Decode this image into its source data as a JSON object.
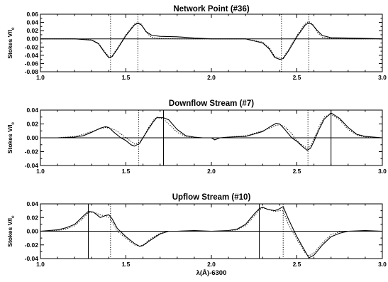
{
  "chart_data": [
    {
      "type": "line",
      "title": "Network Point (#36)",
      "ylabel": "Stokes V/I",
      "ylabel_sub": "c",
      "xlabel": "",
      "xlim": [
        1.0,
        3.0
      ],
      "ylim": [
        -0.08,
        0.06
      ],
      "xticks": [
        "1.0",
        "1.5",
        "2.0",
        "2.5",
        "3.0"
      ],
      "yticks": [
        "-0.08",
        "-0.06",
        "-0.04",
        "-0.02",
        "0.00",
        "0.02",
        "0.04",
        "0.06"
      ],
      "vlines": [
        {
          "x": 1.41,
          "style": "dotted"
        },
        {
          "x": 1.57,
          "style": "dotted"
        },
        {
          "x": 2.41,
          "style": "dotted"
        },
        {
          "x": 2.57,
          "style": "dotted"
        }
      ],
      "series": [
        {
          "style": "solid",
          "x": [
            1.0,
            1.2,
            1.3,
            1.34,
            1.37,
            1.4,
            1.42,
            1.45,
            1.5,
            1.55,
            1.57,
            1.59,
            1.62,
            1.65,
            1.7,
            1.8,
            1.9,
            2.0,
            2.2,
            2.3,
            2.34,
            2.37,
            2.4,
            2.42,
            2.45,
            2.5,
            2.55,
            2.57,
            2.59,
            2.62,
            2.65,
            2.7,
            2.8,
            2.9,
            3.0
          ],
          "y": [
            0.0,
            0.0,
            -0.003,
            -0.012,
            -0.03,
            -0.046,
            -0.043,
            -0.025,
            0.008,
            0.034,
            0.038,
            0.034,
            0.017,
            0.009,
            0.006,
            0.005,
            0.002,
            0.0,
            0.0,
            -0.01,
            -0.025,
            -0.045,
            -0.05,
            -0.048,
            -0.03,
            0.005,
            0.034,
            0.039,
            0.035,
            0.02,
            0.008,
            0.003,
            0.002,
            0.001,
            0.0
          ]
        },
        {
          "style": "dotted",
          "x": [
            1.0,
            1.2,
            1.3,
            1.34,
            1.37,
            1.4,
            1.42,
            1.45,
            1.5,
            1.55,
            1.57,
            1.59,
            1.62,
            1.65,
            1.7,
            1.8,
            1.9,
            2.0,
            2.2,
            2.3,
            2.34,
            2.37,
            2.4,
            2.42,
            2.45,
            2.5,
            2.55,
            2.57,
            2.59,
            2.62,
            2.65,
            2.7,
            2.8,
            2.9,
            3.0
          ],
          "y": [
            0.0,
            0.0,
            -0.002,
            -0.01,
            -0.028,
            -0.043,
            -0.041,
            -0.023,
            0.01,
            0.036,
            0.04,
            0.036,
            0.015,
            0.004,
            0.001,
            0.0,
            0.0,
            0.0,
            0.0,
            -0.008,
            -0.022,
            -0.042,
            -0.047,
            -0.046,
            -0.027,
            0.008,
            0.038,
            0.042,
            0.037,
            0.016,
            0.004,
            0.001,
            0.0,
            0.0,
            0.0
          ]
        }
      ]
    },
    {
      "type": "line",
      "title": "Downflow Stream (#7)",
      "ylabel": "Stokes V/I",
      "ylabel_sub": "c",
      "xlabel": "",
      "xlim": [
        1.0,
        3.0
      ],
      "ylim": [
        -0.04,
        0.04
      ],
      "xticks": [
        "1.0",
        "1.5",
        "2.0",
        "2.5",
        "3.0"
      ],
      "yticks": [
        "-0.04",
        "-0.02",
        "0.00",
        "0.02",
        "0.04"
      ],
      "vlines": [
        {
          "x": 1.575,
          "style": "dotted"
        },
        {
          "x": 1.72,
          "style": "solid"
        },
        {
          "x": 2.565,
          "style": "dotted"
        },
        {
          "x": 2.7,
          "style": "solid"
        }
      ],
      "series": [
        {
          "style": "solid",
          "x": [
            1.0,
            1.1,
            1.2,
            1.25,
            1.3,
            1.35,
            1.38,
            1.4,
            1.43,
            1.47,
            1.5,
            1.53,
            1.55,
            1.58,
            1.6,
            1.63,
            1.66,
            1.68,
            1.72,
            1.75,
            1.8,
            1.85,
            1.9,
            1.95,
            2.0,
            2.02,
            2.05,
            2.1,
            2.2,
            2.3,
            2.35,
            2.38,
            2.4,
            2.43,
            2.47,
            2.5,
            2.53,
            2.56,
            2.58,
            2.6,
            2.63,
            2.66,
            2.7,
            2.75,
            2.8,
            2.85,
            2.9,
            2.95,
            3.0
          ],
          "y": [
            0.0,
            0.0,
            0.001,
            0.003,
            0.008,
            0.014,
            0.016,
            0.015,
            0.008,
            0.0,
            -0.004,
            -0.01,
            -0.012,
            -0.008,
            0.0,
            0.012,
            0.023,
            0.029,
            0.029,
            0.026,
            0.012,
            0.003,
            0.001,
            0.0,
            0.0,
            -0.003,
            0.0,
            0.001,
            0.002,
            0.009,
            0.017,
            0.021,
            0.02,
            0.012,
            0.0,
            -0.005,
            -0.012,
            -0.018,
            -0.015,
            -0.005,
            0.012,
            0.027,
            0.036,
            0.028,
            0.015,
            0.005,
            0.002,
            0.001,
            0.0
          ]
        },
        {
          "style": "dotted",
          "x": [
            1.0,
            1.1,
            1.2,
            1.25,
            1.3,
            1.35,
            1.38,
            1.4,
            1.43,
            1.47,
            1.5,
            1.53,
            1.55,
            1.58,
            1.6,
            1.63,
            1.66,
            1.68,
            1.72,
            1.75,
            1.8,
            1.85,
            1.9,
            1.95,
            2.0,
            2.02,
            2.05,
            2.1,
            2.2,
            2.3,
            2.35,
            2.38,
            2.4,
            2.43,
            2.47,
            2.5,
            2.53,
            2.56,
            2.58,
            2.6,
            2.63,
            2.66,
            2.7,
            2.75,
            2.8,
            2.85,
            2.9,
            2.95,
            3.0
          ],
          "y": [
            0.0,
            0.0,
            0.002,
            0.005,
            0.009,
            0.013,
            0.015,
            0.014,
            0.012,
            0.006,
            0.0,
            -0.005,
            -0.009,
            -0.006,
            0.0,
            0.014,
            0.025,
            0.03,
            0.027,
            0.02,
            0.008,
            0.002,
            0.0,
            0.0,
            0.0,
            0.0,
            0.0,
            0.001,
            0.003,
            0.01,
            0.015,
            0.018,
            0.019,
            0.016,
            0.006,
            -0.004,
            -0.01,
            -0.015,
            -0.012,
            -0.002,
            0.016,
            0.03,
            0.034,
            0.026,
            0.012,
            0.004,
            0.001,
            0.0,
            0.0
          ]
        }
      ]
    },
    {
      "type": "line",
      "title": "Upflow Stream (#10)",
      "ylabel": "Stokes V/I",
      "ylabel_sub": "c",
      "xlabel": "λ(Å)-6300",
      "xlim": [
        1.0,
        3.0
      ],
      "ylim": [
        -0.04,
        0.04
      ],
      "xticks": [
        "1.0",
        "1.5",
        "2.0",
        "2.5",
        "3.0"
      ],
      "yticks": [
        "-0.04",
        "-0.02",
        "0.00",
        "0.02",
        "0.04"
      ],
      "vlines": [
        {
          "x": 1.28,
          "style": "solid"
        },
        {
          "x": 1.41,
          "style": "dotted"
        },
        {
          "x": 2.28,
          "style": "solid"
        },
        {
          "x": 2.42,
          "style": "dotted"
        }
      ],
      "series": [
        {
          "style": "solid",
          "x": [
            1.0,
            1.1,
            1.15,
            1.2,
            1.25,
            1.28,
            1.31,
            1.35,
            1.38,
            1.4,
            1.42,
            1.45,
            1.5,
            1.55,
            1.58,
            1.6,
            1.65,
            1.7,
            1.75,
            1.8,
            1.9,
            2.0,
            2.1,
            2.15,
            2.2,
            2.25,
            2.28,
            2.3,
            2.33,
            2.37,
            2.4,
            2.42,
            2.45,
            2.5,
            2.55,
            2.57,
            2.6,
            2.65,
            2.7,
            2.75,
            2.8,
            2.9,
            3.0
          ],
          "y": [
            0.0,
            0.002,
            0.005,
            0.01,
            0.022,
            0.029,
            0.028,
            0.02,
            0.023,
            0.024,
            0.018,
            0.004,
            -0.008,
            -0.018,
            -0.022,
            -0.021,
            -0.012,
            -0.004,
            0.0,
            0.0,
            0.001,
            0.0,
            0.001,
            0.003,
            0.01,
            0.025,
            0.033,
            0.035,
            0.032,
            0.03,
            0.033,
            0.036,
            0.018,
            -0.008,
            -0.03,
            -0.039,
            -0.035,
            -0.02,
            -0.008,
            -0.003,
            0.0,
            0.001,
            0.0
          ]
        },
        {
          "style": "dotted",
          "x": [
            1.0,
            1.1,
            1.15,
            1.2,
            1.25,
            1.28,
            1.31,
            1.35,
            1.38,
            1.4,
            1.42,
            1.45,
            1.5,
            1.55,
            1.58,
            1.6,
            1.65,
            1.7,
            1.75,
            1.8,
            1.9,
            2.0,
            2.1,
            2.15,
            2.2,
            2.25,
            2.28,
            2.3,
            2.33,
            2.37,
            2.4,
            2.42,
            2.45,
            2.5,
            2.55,
            2.57,
            2.6,
            2.65,
            2.7,
            2.75,
            2.8,
            2.9,
            3.0
          ],
          "y": [
            0.0,
            0.001,
            0.003,
            0.008,
            0.019,
            0.027,
            0.028,
            0.024,
            0.022,
            0.02,
            0.014,
            0.0,
            -0.01,
            -0.02,
            -0.022,
            -0.02,
            -0.01,
            -0.003,
            0.0,
            0.0,
            0.0,
            0.0,
            0.0,
            0.002,
            0.008,
            0.022,
            0.031,
            0.034,
            0.032,
            0.029,
            0.03,
            0.03,
            0.01,
            -0.012,
            -0.032,
            -0.036,
            -0.032,
            -0.017,
            -0.005,
            -0.001,
            0.0,
            0.0,
            0.0
          ]
        }
      ]
    }
  ]
}
